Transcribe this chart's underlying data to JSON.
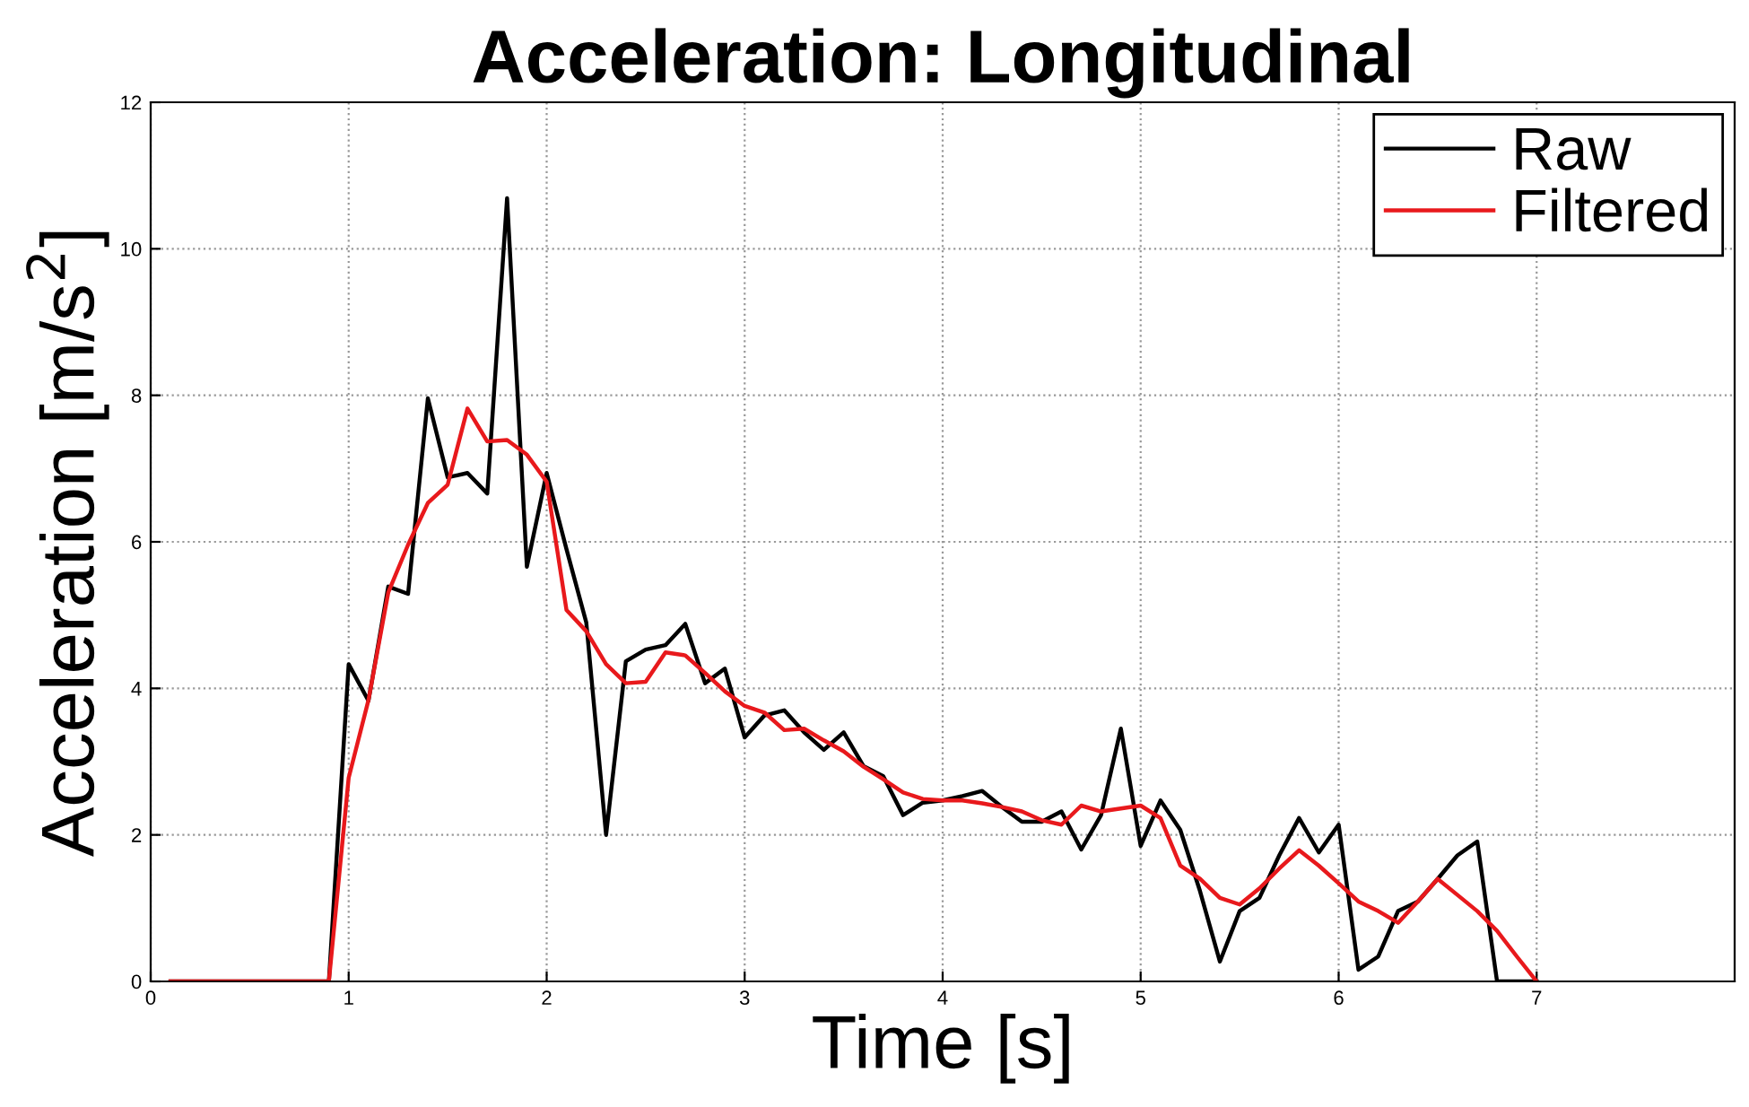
{
  "chart_data": {
    "type": "line",
    "title": "Acceleration: Longitudinal",
    "xlabel": "Time [s]",
    "ylabel": "Acceleration [m/s$^{2}$]",
    "x": [
      0.1,
      0.2,
      0.3,
      0.4,
      0.5,
      0.6,
      0.7,
      0.8,
      0.9,
      1.0,
      1.1,
      1.2,
      1.3,
      1.4,
      1.5,
      1.6,
      1.7,
      1.8,
      1.9,
      2.0,
      2.1,
      2.2,
      2.3,
      2.4,
      2.5,
      2.6,
      2.7,
      2.8,
      2.9,
      3.0,
      3.1,
      3.2,
      3.3,
      3.4,
      3.5,
      3.6,
      3.7,
      3.8,
      3.9,
      4.0,
      4.1,
      4.2,
      4.3,
      4.4,
      4.5,
      4.6,
      4.7,
      4.8,
      4.9,
      5.0,
      5.1,
      5.2,
      5.3,
      5.4,
      5.5,
      5.6,
      5.7,
      5.8,
      5.9,
      6.0,
      6.1,
      6.2,
      6.3,
      6.4,
      6.5,
      6.6,
      6.7,
      6.8,
      6.9,
      7.0
    ],
    "series": [
      {
        "name": "Raw",
        "color": "#000000",
        "values": [
          0,
          0,
          0,
          0,
          0,
          0,
          0,
          0,
          0,
          4.33,
          3.83,
          5.39,
          5.29,
          7.96,
          6.88,
          6.94,
          6.66,
          10.69,
          5.66,
          6.94,
          5.9,
          4.9,
          2.0,
          4.37,
          4.53,
          4.59,
          4.88,
          4.07,
          4.27,
          3.33,
          3.63,
          3.7,
          3.4,
          3.16,
          3.4,
          2.94,
          2.8,
          2.27,
          2.44,
          2.47,
          2.53,
          2.6,
          2.38,
          2.18,
          2.18,
          2.32,
          1.8,
          2.27,
          3.45,
          1.85,
          2.47,
          2.07,
          1.23,
          0.27,
          0.96,
          1.14,
          1.72,
          2.23,
          1.76,
          2.14,
          0.16,
          0.34,
          0.96,
          1.09,
          1.4,
          1.72,
          1.91,
          0,
          0,
          0
        ]
      },
      {
        "name": "Filtered",
        "color": "#e8191c",
        "values": [
          0,
          0,
          0,
          0,
          0,
          0,
          0,
          0,
          0,
          2.78,
          3.84,
          5.31,
          5.96,
          6.53,
          6.78,
          7.82,
          7.37,
          7.39,
          7.19,
          6.82,
          5.07,
          4.78,
          4.33,
          4.07,
          4.09,
          4.49,
          4.45,
          4.21,
          3.96,
          3.76,
          3.67,
          3.43,
          3.45,
          3.29,
          3.14,
          2.93,
          2.76,
          2.58,
          2.49,
          2.47,
          2.47,
          2.43,
          2.38,
          2.32,
          2.2,
          2.14,
          2.4,
          2.32,
          2.36,
          2.4,
          2.23,
          1.58,
          1.4,
          1.14,
          1.05,
          1.27,
          1.54,
          1.79,
          1.58,
          1.34,
          1.09,
          0.96,
          0.8,
          1.09,
          1.4,
          1.18,
          0.96,
          0.69,
          0.34,
          0
        ]
      }
    ],
    "xlim": [
      0,
      8
    ],
    "xticks": [
      0,
      1,
      2,
      3,
      4,
      5,
      6,
      7
    ],
    "ylim": [
      0,
      12
    ],
    "yticks": [
      0,
      2,
      4,
      6,
      8,
      10,
      12
    ],
    "grid": true,
    "legend": "top right",
    "marker": "none",
    "line_style": "solid"
  }
}
